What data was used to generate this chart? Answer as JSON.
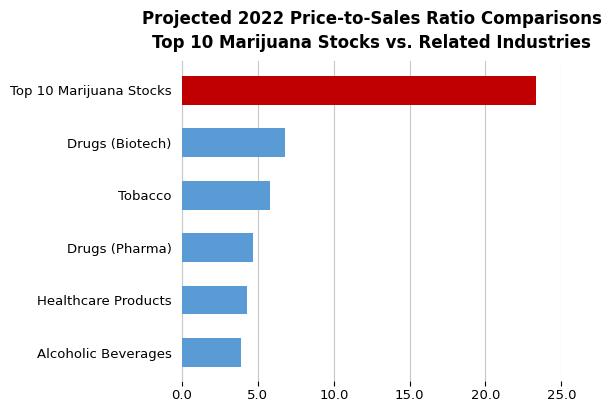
{
  "title_line1": "Projected 2022 Price-to-Sales Ratio Comparisons",
  "title_line2": "Top 10 Marijuana Stocks vs. Related Industries",
  "categories": [
    "Alcoholic Beverages",
    "Healthcare Products",
    "Drugs (Pharma)",
    "Tobacco",
    "Drugs (Biotech)",
    "Top 10 Marijuana Stocks"
  ],
  "values": [
    3.9,
    4.3,
    4.7,
    5.8,
    6.8,
    23.3
  ],
  "colors": [
    "#5b9bd5",
    "#5b9bd5",
    "#5b9bd5",
    "#5b9bd5",
    "#5b9bd5",
    "#c00000"
  ],
  "xlim": [
    0,
    25
  ],
  "xticks": [
    0.0,
    5.0,
    10.0,
    15.0,
    20.0,
    25.0
  ],
  "background_color": "#ffffff",
  "grid_color": "#c8c8c8",
  "title_fontsize": 12,
  "label_fontsize": 9.5,
  "tick_fontsize": 9.5,
  "bar_height": 0.55
}
